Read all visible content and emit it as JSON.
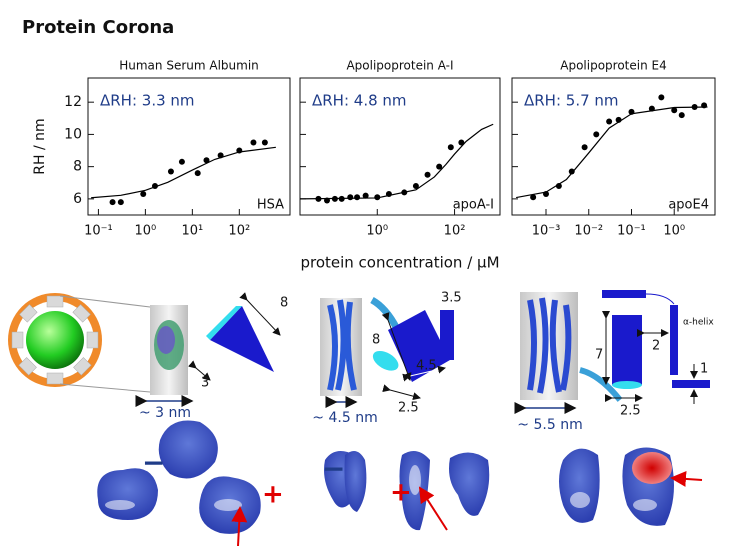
{
  "title": "Protein Corona",
  "x_label": "protein concentration / μM",
  "chart_data": [
    {
      "type": "scatter",
      "title": "Human Serum Albumin",
      "label": "HSA",
      "annotation": "ΔRH:  3.3 nm",
      "ylabel": "RH / nm",
      "x": [
        0.2,
        0.3,
        0.9,
        1.6,
        3.5,
        6,
        13,
        20,
        40,
        100,
        200,
        350
      ],
      "values": [
        5.8,
        5.8,
        6.3,
        6.8,
        7.7,
        8.3,
        7.6,
        8.4,
        8.7,
        9,
        9.5,
        9.5
      ],
      "fit_x": [
        0.07,
        0.3,
        1,
        3,
        10,
        30,
        100,
        600
      ],
      "fit_values": [
        6.07,
        6.22,
        6.53,
        7.03,
        7.79,
        8.45,
        8.91,
        9.2
      ],
      "color": "#000000",
      "log_x": true,
      "xlim": [
        0.06,
        1200
      ],
      "xticks": [
        {
          "value": 0.1,
          "label": "10⁻¹"
        },
        {
          "value": 1,
          "label": "10⁰"
        },
        {
          "value": 10,
          "label": "10¹"
        },
        {
          "value": 100,
          "label": "10²"
        }
      ],
      "ylim": [
        5,
        13.5
      ],
      "yticks": [
        6,
        8,
        10,
        12
      ]
    },
    {
      "type": "scatter",
      "title": "Apolipoprotein A-I",
      "label": "apoA-I",
      "annotation": "ΔRH: 4.8 nm",
      "x": [
        0.03,
        0.05,
        0.08,
        0.12,
        0.2,
        0.3,
        0.5,
        1,
        2,
        5,
        10,
        20,
        40,
        80,
        150
      ],
      "values": [
        6.0,
        5.9,
        6.0,
        6.0,
        6.1,
        6.1,
        6.2,
        6.1,
        6.3,
        6.4,
        6.8,
        7.5,
        8.0,
        9.2,
        9.5
      ],
      "fit_x": [
        0.01,
        1,
        10,
        30,
        60,
        100,
        200,
        500,
        1000
      ],
      "fit_values": [
        6.0,
        6.06,
        6.56,
        7.36,
        8.14,
        8.78,
        9.57,
        10.31,
        10.63
      ],
      "color": "#000000",
      "log_x": true,
      "xlim": [
        0.01,
        1500
      ],
      "xticks": [
        {
          "value": 1,
          "label": "10⁰"
        },
        {
          "value": 100,
          "label": "10²"
        }
      ],
      "ylim": [
        5,
        13.5
      ],
      "yticks": [
        6,
        8,
        10,
        12
      ]
    },
    {
      "type": "scatter",
      "title": "Apolipoprotein E4",
      "label": "apoE4",
      "annotation": "ΔRH: 5.7 nm",
      "x": [
        0.0005,
        0.001,
        0.002,
        0.004,
        0.008,
        0.015,
        0.03,
        0.05,
        0.1,
        0.3,
        0.5,
        1,
        1.5,
        3,
        5
      ],
      "values": [
        6.1,
        6.3,
        6.8,
        7.7,
        9.2,
        10.0,
        10.8,
        10.9,
        11.4,
        11.6,
        12.3,
        11.5,
        11.2,
        11.7,
        11.8
      ],
      "fit_x": [
        0.0002,
        0.001,
        0.003,
        0.01,
        0.03,
        0.1,
        1,
        6
      ],
      "fit_values": [
        6.08,
        6.42,
        7.2,
        8.85,
        10.39,
        11.28,
        11.67,
        11.7
      ],
      "color": "#000000",
      "log_x": true,
      "xlim": [
        0.00016,
        9
      ],
      "xticks": [
        {
          "value": 0.001,
          "label": "10⁻³"
        },
        {
          "value": 0.01,
          "label": "10⁻²"
        },
        {
          "value": 0.1,
          "label": "10⁻¹"
        },
        {
          "value": 1,
          "label": "10⁰"
        }
      ],
      "ylim": [
        5,
        13.5
      ],
      "yticks": [
        6,
        8,
        10,
        12
      ]
    }
  ],
  "diagram_labels": [
    "~ 3 nm",
    "3",
    "8",
    "~ 4.5 nm",
    "8",
    "3.5",
    "4.5",
    "2.5",
    "~ 5.5 nm",
    "7",
    "2",
    "α-helix",
    "2.5",
    "1",
    "−",
    "+",
    "−",
    "+"
  ]
}
